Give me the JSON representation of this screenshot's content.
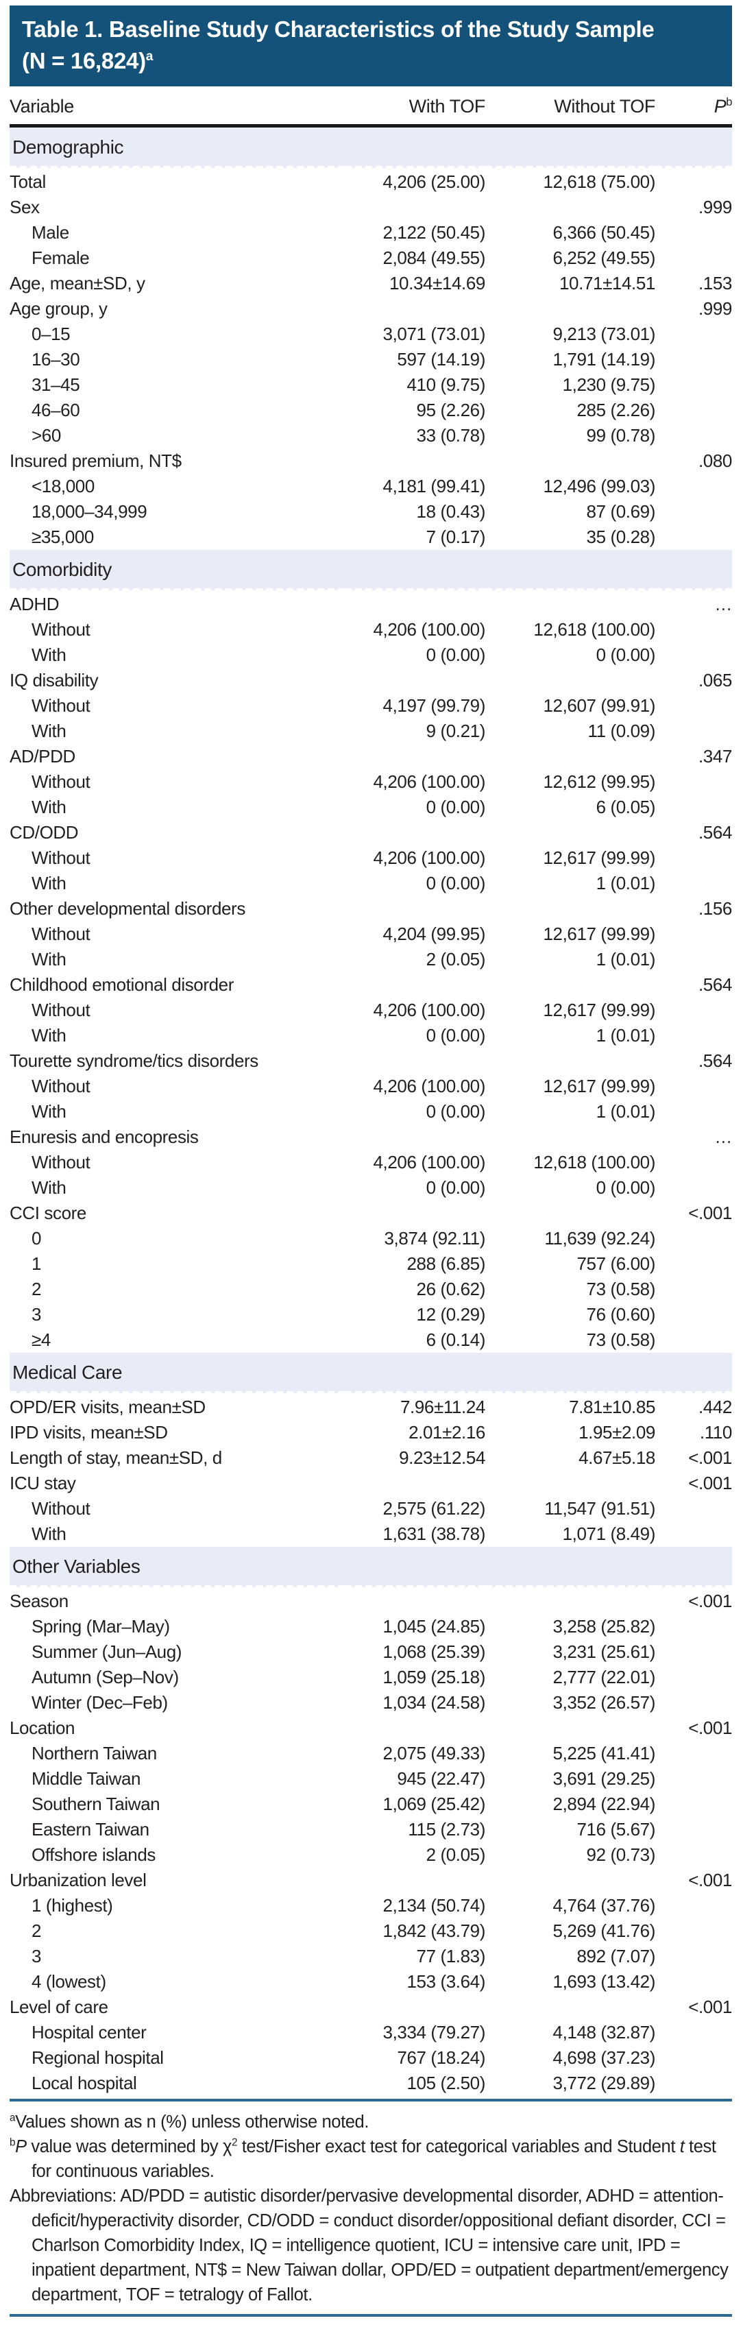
{
  "colors": {
    "banner_bg": "#155279",
    "section_row_bg": "#e8ecf7",
    "rule_blue": "#2b6b93",
    "text": "#231f20"
  },
  "header": {
    "title_line1": "Table 1. Baseline Study Characteristics of the Study Sample",
    "title_line2": "(N = 16,824)",
    "title_superscript": "a"
  },
  "table": {
    "columns": {
      "variable": "Variable",
      "with_tof": "With TOF",
      "without_tof": "Without TOF",
      "p_label": "P",
      "p_superscript": "b"
    },
    "rows": [
      {
        "section": true,
        "label": "Demographic"
      },
      {
        "label": "Total",
        "indent": 0,
        "with": "4,206 (25.00)",
        "without": "12,618 (75.00)",
        "p": ""
      },
      {
        "label": "Sex",
        "indent": 0,
        "with": "",
        "without": "",
        "p": ".999"
      },
      {
        "label": "Male",
        "indent": 1,
        "with": "2,122 (50.45)",
        "without": "6,366 (50.45)",
        "p": ""
      },
      {
        "label": "Female",
        "indent": 1,
        "with": "2,084 (49.55)",
        "without": "6,252 (49.55)",
        "p": ""
      },
      {
        "label": "Age, mean±SD, y",
        "indent": 0,
        "with": "10.34±14.69",
        "without": "10.71±14.51",
        "p": ".153"
      },
      {
        "label": "Age group, y",
        "indent": 0,
        "with": "",
        "without": "",
        "p": ".999"
      },
      {
        "label": "0–15",
        "indent": 1,
        "with": "3,071 (73.01)",
        "without": "9,213 (73.01)",
        "p": ""
      },
      {
        "label": "16–30",
        "indent": 1,
        "with": "597 (14.19)",
        "without": "1,791 (14.19)",
        "p": ""
      },
      {
        "label": "31–45",
        "indent": 1,
        "with": "410 (9.75)",
        "without": "1,230 (9.75)",
        "p": ""
      },
      {
        "label": "46–60",
        "indent": 1,
        "with": "95 (2.26)",
        "without": "285 (2.26)",
        "p": ""
      },
      {
        "label": ">60",
        "indent": 1,
        "with": "33 (0.78)",
        "without": "99 (0.78)",
        "p": ""
      },
      {
        "label": "Insured premium, NT$",
        "indent": 0,
        "with": "",
        "without": "",
        "p": ".080"
      },
      {
        "label": "<18,000",
        "indent": 1,
        "with": "4,181 (99.41)",
        "without": "12,496 (99.03)",
        "p": ""
      },
      {
        "label": "18,000–34,999",
        "indent": 1,
        "with": "18 (0.43)",
        "without": "87 (0.69)",
        "p": ""
      },
      {
        "label": "≥35,000",
        "indent": 1,
        "with": "7 (0.17)",
        "without": "35 (0.28)",
        "p": ""
      },
      {
        "section": true,
        "label": "Comorbidity"
      },
      {
        "label": "ADHD",
        "indent": 0,
        "with": "",
        "without": "",
        "p": "…"
      },
      {
        "label": "Without",
        "indent": 1,
        "with": "4,206 (100.00)",
        "without": "12,618 (100.00)",
        "p": ""
      },
      {
        "label": "With",
        "indent": 1,
        "with": "0 (0.00)",
        "without": "0 (0.00)",
        "p": ""
      },
      {
        "label": "IQ disability",
        "indent": 0,
        "with": "",
        "without": "",
        "p": ".065"
      },
      {
        "label": "Without",
        "indent": 1,
        "with": "4,197 (99.79)",
        "without": "12,607 (99.91)",
        "p": ""
      },
      {
        "label": "With",
        "indent": 1,
        "with": "9 (0.21)",
        "without": "11 (0.09)",
        "p": ""
      },
      {
        "label": "AD/PDD",
        "indent": 0,
        "with": "",
        "without": "",
        "p": ".347"
      },
      {
        "label": "Without",
        "indent": 1,
        "with": "4,206 (100.00)",
        "without": "12,612 (99.95)",
        "p": ""
      },
      {
        "label": "With",
        "indent": 1,
        "with": "0 (0.00)",
        "without": "6 (0.05)",
        "p": ""
      },
      {
        "label": "CD/ODD",
        "indent": 0,
        "with": "",
        "without": "",
        "p": ".564"
      },
      {
        "label": "Without",
        "indent": 1,
        "with": "4,206 (100.00)",
        "without": "12,617 (99.99)",
        "p": ""
      },
      {
        "label": "With",
        "indent": 1,
        "with": "0 (0.00)",
        "without": "1 (0.01)",
        "p": ""
      },
      {
        "label": "Other developmental disorders",
        "indent": 0,
        "with": "",
        "without": "",
        "p": ".156"
      },
      {
        "label": "Without",
        "indent": 1,
        "with": "4,204 (99.95)",
        "without": "12,617 (99.99)",
        "p": ""
      },
      {
        "label": "With",
        "indent": 1,
        "with": "2 (0.05)",
        "without": "1 (0.01)",
        "p": ""
      },
      {
        "label": "Childhood emotional disorder",
        "indent": 0,
        "with": "",
        "without": "",
        "p": ".564"
      },
      {
        "label": "Without",
        "indent": 1,
        "with": "4,206 (100.00)",
        "without": "12,617 (99.99)",
        "p": ""
      },
      {
        "label": "With",
        "indent": 1,
        "with": "0 (0.00)",
        "without": "1 (0.01)",
        "p": ""
      },
      {
        "label": "Tourette syndrome/tics disorders",
        "indent": 0,
        "with": "",
        "without": "",
        "p": ".564"
      },
      {
        "label": "Without",
        "indent": 1,
        "with": "4,206 (100.00)",
        "without": "12,617 (99.99)",
        "p": ""
      },
      {
        "label": "With",
        "indent": 1,
        "with": "0 (0.00)",
        "without": "1 (0.01)",
        "p": ""
      },
      {
        "label": "Enuresis and encopresis",
        "indent": 0,
        "with": "",
        "without": "",
        "p": "…"
      },
      {
        "label": "Without",
        "indent": 1,
        "with": "4,206 (100.00)",
        "without": "12,618 (100.00)",
        "p": ""
      },
      {
        "label": "With",
        "indent": 1,
        "with": "0 (0.00)",
        "without": "0 (0.00)",
        "p": ""
      },
      {
        "label": "CCI score",
        "indent": 0,
        "with": "",
        "without": "",
        "p": "<.001"
      },
      {
        "label": "0",
        "indent": 1,
        "with": "3,874 (92.11)",
        "without": "11,639 (92.24)",
        "p": ""
      },
      {
        "label": "1",
        "indent": 1,
        "with": "288 (6.85)",
        "without": "757 (6.00)",
        "p": ""
      },
      {
        "label": "2",
        "indent": 1,
        "with": "26 (0.62)",
        "without": "73 (0.58)",
        "p": ""
      },
      {
        "label": "3",
        "indent": 1,
        "with": "12 (0.29)",
        "without": "76 (0.60)",
        "p": ""
      },
      {
        "label": "≥4",
        "indent": 1,
        "with": "6 (0.14)",
        "without": "73 (0.58)",
        "p": ""
      },
      {
        "section": true,
        "label": "Medical Care"
      },
      {
        "label": "OPD/ER visits, mean±SD",
        "indent": 0,
        "with": "7.96±11.24",
        "without": "7.81±10.85",
        "p": ".442"
      },
      {
        "label": "IPD visits, mean±SD",
        "indent": 0,
        "with": "2.01±2.16",
        "without": "1.95±2.09",
        "p": ".110"
      },
      {
        "label": "Length of stay, mean±SD, d",
        "indent": 0,
        "with": "9.23±12.54",
        "without": "4.67±5.18",
        "p": "<.001"
      },
      {
        "label": "ICU stay",
        "indent": 0,
        "with": "",
        "without": "",
        "p": "<.001"
      },
      {
        "label": "Without",
        "indent": 1,
        "with": "2,575 (61.22)",
        "without": "11,547 (91.51)",
        "p": ""
      },
      {
        "label": "With",
        "indent": 1,
        "with": "1,631 (38.78)",
        "without": "1,071 (8.49)",
        "p": ""
      },
      {
        "section": true,
        "label": "Other Variables"
      },
      {
        "label": "Season",
        "indent": 0,
        "with": "",
        "without": "",
        "p": "<.001"
      },
      {
        "label": "Spring (Mar–May)",
        "indent": 1,
        "with": "1,045 (24.85)",
        "without": "3,258 (25.82)",
        "p": ""
      },
      {
        "label": "Summer (Jun–Aug)",
        "indent": 1,
        "with": "1,068 (25.39)",
        "without": "3,231 (25.61)",
        "p": ""
      },
      {
        "label": "Autumn (Sep–Nov)",
        "indent": 1,
        "with": "1,059 (25.18)",
        "without": "2,777 (22.01)",
        "p": ""
      },
      {
        "label": "Winter (Dec–Feb)",
        "indent": 1,
        "with": "1,034 (24.58)",
        "without": "3,352 (26.57)",
        "p": ""
      },
      {
        "label": "Location",
        "indent": 0,
        "with": "",
        "without": "",
        "p": "<.001"
      },
      {
        "label": "Northern Taiwan",
        "indent": 1,
        "with": "2,075 (49.33)",
        "without": "5,225 (41.41)",
        "p": ""
      },
      {
        "label": "Middle Taiwan",
        "indent": 1,
        "with": "945 (22.47)",
        "without": "3,691 (29.25)",
        "p": ""
      },
      {
        "label": "Southern Taiwan",
        "indent": 1,
        "with": "1,069 (25.42)",
        "without": "2,894 (22.94)",
        "p": ""
      },
      {
        "label": "Eastern Taiwan",
        "indent": 1,
        "with": "115 (2.73)",
        "without": "716 (5.67)",
        "p": ""
      },
      {
        "label": "Offshore islands",
        "indent": 1,
        "with": "2 (0.05)",
        "without": "92 (0.73)",
        "p": ""
      },
      {
        "label": "Urbanization level",
        "indent": 0,
        "with": "",
        "without": "",
        "p": "<.001"
      },
      {
        "label": "1 (highest)",
        "indent": 1,
        "with": "2,134 (50.74)",
        "without": "4,764 (37.76)",
        "p": ""
      },
      {
        "label": "2",
        "indent": 1,
        "with": "1,842 (43.79)",
        "without": "5,269 (41.76)",
        "p": ""
      },
      {
        "label": "3",
        "indent": 1,
        "with": "77 (1.83)",
        "without": "892 (7.07)",
        "p": ""
      },
      {
        "label": "4 (lowest)",
        "indent": 1,
        "with": "153 (3.64)",
        "without": "1,693 (13.42)",
        "p": ""
      },
      {
        "label": "Level of care",
        "indent": 0,
        "with": "",
        "without": "",
        "p": "<.001"
      },
      {
        "label": "Hospital center",
        "indent": 1,
        "with": "3,334 (79.27)",
        "without": "4,148 (32.87)",
        "p": ""
      },
      {
        "label": "Regional hospital",
        "indent": 1,
        "with": "767 (18.24)",
        "without": "4,698 (37.23)",
        "p": ""
      },
      {
        "label": "Local hospital",
        "indent": 1,
        "with": "105 (2.50)",
        "without": "3,772 (29.89)",
        "p": ""
      }
    ]
  },
  "footnotes": {
    "a": {
      "sup": "a",
      "text": "Values shown as n (%) unless otherwise noted."
    },
    "b": {
      "sup": "b",
      "p": "P",
      "part1": " value was determined by χ",
      "sup2": "2",
      "part2": " test/Fisher exact test for categorical variables and Student ",
      "t": "t",
      "part3": " test for continuous variables."
    },
    "abbreviations": "Abbreviations: AD/PDD = autistic disorder/pervasive developmental disorder, ADHD = attention-deficit/hyperactivity disorder, CD/ODD = conduct disorder/oppositional defiant disorder, CCI = Charlson Comorbidity Index, IQ = intelligence quotient, ICU = intensive care unit, IPD = inpatient department, NT$ = New Taiwan dollar, OPD/ED = outpatient department/emergency department, TOF = tetralogy of Fallot."
  }
}
